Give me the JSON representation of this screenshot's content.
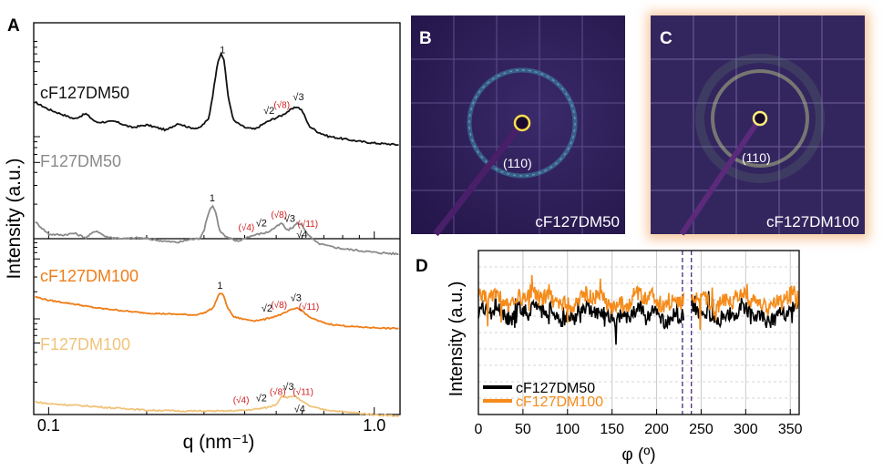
{
  "panel_letters": {
    "a": "A",
    "b": "B",
    "c": "C",
    "d": "D"
  },
  "chart_data": [
    {
      "panel": "A",
      "type": "line",
      "title": "",
      "xlabel": "q (nm⁻¹)",
      "ylabel": "Intensity (a.u.)",
      "xscale": "log",
      "xlim": [
        0.09,
        1.2
      ],
      "xticks": [
        {
          "value": 0.1,
          "label": "0.1"
        },
        {
          "value": 1.0,
          "label": "1.0"
        }
      ],
      "ylog": true,
      "series": [
        {
          "name": "cF127DM50",
          "color": "#111111",
          "group": "top",
          "points": [
            [
              0.09,
              0.8
            ],
            [
              0.1,
              0.71
            ],
            [
              0.12,
              0.6
            ],
            [
              0.13,
              0.66
            ],
            [
              0.14,
              0.56
            ],
            [
              0.16,
              0.57
            ],
            [
              0.18,
              0.5
            ],
            [
              0.2,
              0.53
            ],
            [
              0.23,
              0.47
            ],
            [
              0.25,
              0.55
            ],
            [
              0.27,
              0.5
            ],
            [
              0.29,
              0.49
            ],
            [
              0.31,
              0.6
            ],
            [
              0.32,
              0.9
            ],
            [
              0.33,
              1.25
            ],
            [
              0.338,
              1.35
            ],
            [
              0.346,
              1.28
            ],
            [
              0.356,
              0.85
            ],
            [
              0.37,
              0.58
            ],
            [
              0.4,
              0.5
            ],
            [
              0.43,
              0.48
            ],
            [
              0.46,
              0.55
            ],
            [
              0.49,
              0.6
            ],
            [
              0.52,
              0.64
            ],
            [
              0.55,
              0.7
            ],
            [
              0.58,
              0.74
            ],
            [
              0.6,
              0.7
            ],
            [
              0.63,
              0.52
            ],
            [
              0.67,
              0.45
            ],
            [
              0.72,
              0.4
            ],
            [
              0.8,
              0.37
            ],
            [
              0.9,
              0.34
            ],
            [
              1.0,
              0.32
            ],
            [
              1.1,
              0.31
            ],
            [
              1.2,
              0.3
            ]
          ],
          "peak_labels": [
            {
              "text": "1",
              "q": 0.342,
              "color": "#111111"
            },
            {
              "text": "√2",
              "q": 0.475,
              "color": "#111111"
            },
            {
              "text": "(√8)",
              "q": 0.52,
              "color": "#d01c1c"
            },
            {
              "text": "√3",
              "q": 0.585,
              "color": "#111111"
            }
          ]
        },
        {
          "name": "F127DM50",
          "color": "#8a8a8a",
          "group": "top",
          "points": [
            [
              0.09,
              0.23
            ],
            [
              0.1,
              0.08
            ],
            [
              0.11,
              0.07
            ],
            [
              0.12,
              0.09
            ],
            [
              0.13,
              0.04
            ],
            [
              0.14,
              0.12
            ],
            [
              0.15,
              0.05
            ],
            [
              0.17,
              0.03
            ],
            [
              0.19,
              0.04
            ],
            [
              0.21,
              0.02
            ],
            [
              0.23,
              0.0
            ],
            [
              0.25,
              -0.01
            ],
            [
              0.27,
              0.02
            ],
            [
              0.29,
              0.03
            ],
            [
              0.3,
              0.12
            ],
            [
              0.31,
              0.32
            ],
            [
              0.318,
              0.4
            ],
            [
              0.326,
              0.32
            ],
            [
              0.335,
              0.12
            ],
            [
              0.35,
              0.05
            ],
            [
              0.38,
              0.0
            ],
            [
              0.41,
              0.05
            ],
            [
              0.44,
              0.08
            ],
            [
              0.47,
              0.1
            ],
            [
              0.5,
              0.16
            ],
            [
              0.52,
              0.2
            ],
            [
              0.54,
              0.12
            ],
            [
              0.56,
              0.15
            ],
            [
              0.58,
              0.2
            ],
            [
              0.6,
              0.18
            ],
            [
              0.63,
              0.06
            ],
            [
              0.67,
              -0.02
            ],
            [
              0.72,
              -0.05
            ],
            [
              0.8,
              -0.08
            ],
            [
              0.9,
              -0.1
            ],
            [
              1.0,
              -0.12
            ],
            [
              1.1,
              -0.13
            ],
            [
              1.2,
              -0.14
            ]
          ],
          "peak_labels": [
            {
              "text": "1",
              "q": 0.318,
              "color": "#111111"
            },
            {
              "text": "(√4)",
              "q": 0.405,
              "color": "#d01c1c"
            },
            {
              "text": "√2",
              "q": 0.45,
              "color": "#111111"
            },
            {
              "text": "(√8)",
              "q": 0.51,
              "color": "#d01c1c"
            },
            {
              "text": "√3",
              "q": 0.55,
              "color": "#111111"
            },
            {
              "text": "(√11)",
              "q": 0.625,
              "color": "#d01c1c"
            },
            {
              "text": "√4",
              "q": 0.6,
              "color": "#111111"
            }
          ]
        },
        {
          "name": "cF127DM100",
          "color": "#ef7d17",
          "group": "bottom",
          "points": [
            [
              0.09,
              0.88
            ],
            [
              0.1,
              0.82
            ],
            [
              0.12,
              0.76
            ],
            [
              0.14,
              0.7
            ],
            [
              0.16,
              0.67
            ],
            [
              0.18,
              0.64
            ],
            [
              0.2,
              0.62
            ],
            [
              0.22,
              0.61
            ],
            [
              0.25,
              0.6
            ],
            [
              0.28,
              0.59
            ],
            [
              0.3,
              0.62
            ],
            [
              0.32,
              0.7
            ],
            [
              0.33,
              0.86
            ],
            [
              0.336,
              0.94
            ],
            [
              0.344,
              0.9
            ],
            [
              0.355,
              0.7
            ],
            [
              0.37,
              0.56
            ],
            [
              0.4,
              0.52
            ],
            [
              0.43,
              0.5
            ],
            [
              0.46,
              0.52
            ],
            [
              0.49,
              0.56
            ],
            [
              0.52,
              0.6
            ],
            [
              0.55,
              0.66
            ],
            [
              0.58,
              0.7
            ],
            [
              0.6,
              0.66
            ],
            [
              0.63,
              0.56
            ],
            [
              0.67,
              0.5
            ],
            [
              0.72,
              0.45
            ],
            [
              0.8,
              0.42
            ],
            [
              0.9,
              0.4
            ],
            [
              1.0,
              0.39
            ],
            [
              1.1,
              0.38
            ],
            [
              1.2,
              0.38
            ]
          ],
          "peak_labels": [
            {
              "text": "1",
              "q": 0.336,
              "color": "#111111"
            },
            {
              "text": "√2",
              "q": 0.468,
              "color": "#111111"
            },
            {
              "text": "(√8)",
              "q": 0.51,
              "color": "#d01c1c"
            },
            {
              "text": "√3",
              "q": 0.575,
              "color": "#111111"
            },
            {
              "text": "(√11)",
              "q": 0.63,
              "color": "#d01c1c"
            }
          ]
        },
        {
          "name": "F127DM100",
          "color": "#f1c37a",
          "group": "bottom",
          "points": [
            [
              0.09,
              0.24
            ],
            [
              0.1,
              0.21
            ],
            [
              0.12,
              0.19
            ],
            [
              0.14,
              0.17
            ],
            [
              0.16,
              0.15
            ],
            [
              0.18,
              0.14
            ],
            [
              0.2,
              0.12
            ],
            [
              0.22,
              0.12
            ],
            [
              0.25,
              0.11
            ],
            [
              0.28,
              0.11
            ],
            [
              0.31,
              0.11
            ],
            [
              0.35,
              0.11
            ],
            [
              0.4,
              0.12
            ],
            [
              0.44,
              0.14
            ],
            [
              0.47,
              0.16
            ],
            [
              0.5,
              0.2
            ],
            [
              0.52,
              0.32
            ],
            [
              0.535,
              0.3
            ],
            [
              0.55,
              0.3
            ],
            [
              0.57,
              0.32
            ],
            [
              0.6,
              0.24
            ],
            [
              0.64,
              0.17
            ],
            [
              0.7,
              0.13
            ],
            [
              0.8,
              0.1
            ],
            [
              0.9,
              0.08
            ],
            [
              1.0,
              0.06
            ],
            [
              1.1,
              0.05
            ],
            [
              1.2,
              0.04
            ]
          ],
          "peak_labels": [
            {
              "text": "(√4)",
              "q": 0.39,
              "color": "#d01c1c"
            },
            {
              "text": "√2",
              "q": 0.45,
              "color": "#111111"
            },
            {
              "text": "(√8)",
              "q": 0.505,
              "color": "#d01c1c"
            },
            {
              "text": "√3",
              "q": 0.545,
              "color": "#111111"
            },
            {
              "text": "(√11)",
              "q": 0.605,
              "color": "#d01c1c"
            },
            {
              "text": "√4",
              "q": 0.59,
              "color": "#111111"
            }
          ]
        }
      ]
    },
    {
      "panel": "B",
      "type": "image",
      "annotations": [
        "(110)",
        "cF127DM50"
      ]
    },
    {
      "panel": "C",
      "type": "image",
      "annotations": [
        "(110)",
        "cF127DM100"
      ]
    },
    {
      "panel": "D",
      "type": "line",
      "xlabel": "φ (º)",
      "ylabel": "Intensity (a.u.)",
      "xlim": [
        0,
        360
      ],
      "xticks": [
        0,
        50,
        100,
        150,
        200,
        250,
        300,
        350
      ],
      "ylim": [
        0,
        1
      ],
      "reference_lines_x": [
        229,
        239
      ],
      "gap": [
        231,
        239
      ],
      "series": [
        {
          "name": "cF127DM50",
          "color": "#000000",
          "baseline": 0.61,
          "amplitude": 0.045
        },
        {
          "name": "cF127DM100",
          "color": "#f58b1a",
          "baseline": 0.695,
          "amplitude": 0.05
        }
      ]
    }
  ],
  "image_annotations": {
    "b": {
      "peak": "(110)",
      "sample": "cF127DM50"
    },
    "c": {
      "peak": "(110)",
      "sample": "cF127DM100"
    }
  }
}
